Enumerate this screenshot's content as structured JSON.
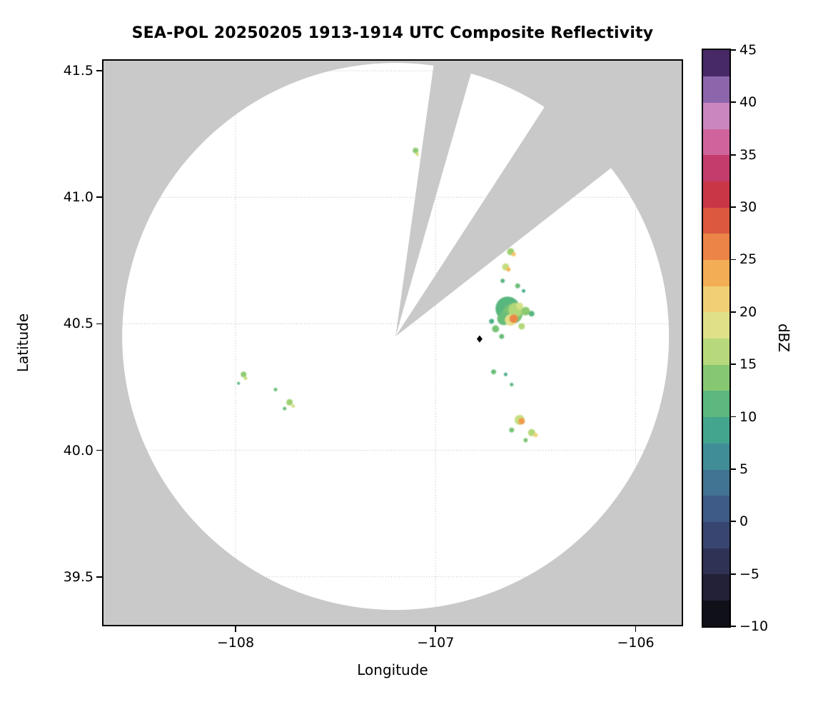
{
  "chart_data": {
    "type": "heatmap",
    "title": "SEA-POL 20250205 1913-1914 UTC Composite Reflectivity",
    "xlabel": "Longitude",
    "ylabel": "Latitude",
    "colorbar_label": "dBZ",
    "xlim": [
      -108.66,
      -105.77
    ],
    "ylim": [
      39.31,
      41.54
    ],
    "x_ticks": {
      "values": [
        -108,
        -107,
        -106
      ],
      "labels": [
        "−108",
        "−107",
        "−106"
      ]
    },
    "y_ticks": {
      "values": [
        41.5,
        41.0,
        40.5,
        40.0,
        39.5
      ],
      "labels": [
        "41.5",
        "41.0",
        "40.5",
        "40.0",
        "39.5"
      ]
    },
    "grid": {
      "color": "#c4c4c4",
      "dash": "1.2 2.6"
    },
    "radar": {
      "center_lon": -107.2,
      "center_lat": 40.45,
      "radius_px": 383,
      "blocked_sectors_deg": [
        [
          8,
          16
        ],
        [
          33,
          52
        ]
      ],
      "coverage_color": "#ffffff",
      "masked_color": "#c9c9c9"
    },
    "site_marker": {
      "lon": -106.78,
      "lat": 40.44,
      "color": "#000000",
      "size": 10
    },
    "colorbar": {
      "min": -10,
      "max": 45,
      "step": 2.5,
      "tick_values": [
        45,
        40,
        35,
        30,
        25,
        20,
        15,
        10,
        5,
        0,
        -5,
        -10
      ],
      "tick_labels": [
        "45",
        "40",
        "35",
        "30",
        "25",
        "20",
        "15",
        "10",
        "5",
        "0",
        "−5",
        "−10"
      ],
      "stops": [
        [
          -10,
          "#060608"
        ],
        [
          -7.5,
          "#1a1929"
        ],
        [
          -5,
          "#2c2945"
        ],
        [
          -2.5,
          "#343b64"
        ],
        [
          0,
          "#3c4e7e"
        ],
        [
          2.5,
          "#3f668e"
        ],
        [
          5,
          "#428098"
        ],
        [
          7.5,
          "#3f9a95"
        ],
        [
          10,
          "#49b086"
        ],
        [
          12.5,
          "#6ec075"
        ],
        [
          15,
          "#9ed06f"
        ],
        [
          17.5,
          "#cfe186"
        ],
        [
          20,
          "#efdf89"
        ],
        [
          22.5,
          "#f3bf5e"
        ],
        [
          25,
          "#f09a4b"
        ],
        [
          27.5,
          "#e56e40"
        ],
        [
          30,
          "#d3413b"
        ],
        [
          32.5,
          "#bf2a51"
        ],
        [
          35,
          "#c64d86"
        ],
        [
          37.5,
          "#d77ab2"
        ],
        [
          40,
          "#ba92cc"
        ],
        [
          42.5,
          "#5e3a8a"
        ],
        [
          45,
          "#2f1745"
        ]
      ]
    },
    "echoes": [
      {
        "lon": -107.1,
        "lat": 41.185,
        "dbz": 14,
        "r": 4
      },
      {
        "lon": -107.092,
        "lat": 41.17,
        "dbz": 18,
        "r": 2.5
      },
      {
        "lon": -106.625,
        "lat": 40.785,
        "dbz": 15,
        "r": 5
      },
      {
        "lon": -106.61,
        "lat": 40.775,
        "dbz": 22,
        "r": 3
      },
      {
        "lon": -106.65,
        "lat": 40.725,
        "dbz": 17,
        "r": 5
      },
      {
        "lon": -106.636,
        "lat": 40.715,
        "dbz": 23,
        "r": 3
      },
      {
        "lon": -106.665,
        "lat": 40.67,
        "dbz": 11,
        "r": 3
      },
      {
        "lon": -106.59,
        "lat": 40.65,
        "dbz": 12,
        "r": 3.5
      },
      {
        "lon": -106.56,
        "lat": 40.63,
        "dbz": 10,
        "r": 2.5
      },
      {
        "lon": -106.64,
        "lat": 40.56,
        "dbz": 11,
        "r": 17
      },
      {
        "lon": -106.615,
        "lat": 40.54,
        "dbz": 13,
        "r": 14
      },
      {
        "lon": -106.66,
        "lat": 40.52,
        "dbz": 12,
        "r": 9
      },
      {
        "lon": -106.6,
        "lat": 40.555,
        "dbz": 16,
        "r": 10
      },
      {
        "lon": -106.625,
        "lat": 40.515,
        "dbz": 19,
        "r": 8
      },
      {
        "lon": -106.61,
        "lat": 40.52,
        "dbz": 26,
        "r": 6
      },
      {
        "lon": -106.58,
        "lat": 40.57,
        "dbz": 18,
        "r": 5
      },
      {
        "lon": -106.55,
        "lat": 40.55,
        "dbz": 14,
        "r": 6
      },
      {
        "lon": -106.52,
        "lat": 40.54,
        "dbz": 11,
        "r": 4
      },
      {
        "lon": -106.7,
        "lat": 40.48,
        "dbz": 13,
        "r": 5
      },
      {
        "lon": -106.72,
        "lat": 40.51,
        "dbz": 10,
        "r": 3.5
      },
      {
        "lon": -106.67,
        "lat": 40.45,
        "dbz": 12,
        "r": 3.5
      },
      {
        "lon": -106.57,
        "lat": 40.49,
        "dbz": 16,
        "r": 4.5
      },
      {
        "lon": -106.71,
        "lat": 40.31,
        "dbz": 12,
        "r": 3.5
      },
      {
        "lon": -106.65,
        "lat": 40.3,
        "dbz": 10,
        "r": 2.5
      },
      {
        "lon": -106.62,
        "lat": 40.26,
        "dbz": 11,
        "r": 2.5
      },
      {
        "lon": -106.58,
        "lat": 40.12,
        "dbz": 17,
        "r": 7
      },
      {
        "lon": -106.57,
        "lat": 40.115,
        "dbz": 25,
        "r": 4.5
      },
      {
        "lon": -106.62,
        "lat": 40.08,
        "dbz": 13,
        "r": 3.5
      },
      {
        "lon": -106.52,
        "lat": 40.07,
        "dbz": 16,
        "r": 5
      },
      {
        "lon": -106.5,
        "lat": 40.06,
        "dbz": 21,
        "r": 3
      },
      {
        "lon": -106.55,
        "lat": 40.04,
        "dbz": 13,
        "r": 3
      },
      {
        "lon": -107.96,
        "lat": 40.3,
        "dbz": 14,
        "r": 4
      },
      {
        "lon": -107.95,
        "lat": 40.285,
        "dbz": 17,
        "r": 2.5
      },
      {
        "lon": -107.985,
        "lat": 40.265,
        "dbz": 11,
        "r": 2
      },
      {
        "lon": -107.8,
        "lat": 40.24,
        "dbz": 12,
        "r": 2.5
      },
      {
        "lon": -107.73,
        "lat": 40.19,
        "dbz": 15,
        "r": 4.5
      },
      {
        "lon": -107.712,
        "lat": 40.175,
        "dbz": 18,
        "r": 2.5
      },
      {
        "lon": -107.755,
        "lat": 40.165,
        "dbz": 12,
        "r": 2.5
      }
    ]
  }
}
